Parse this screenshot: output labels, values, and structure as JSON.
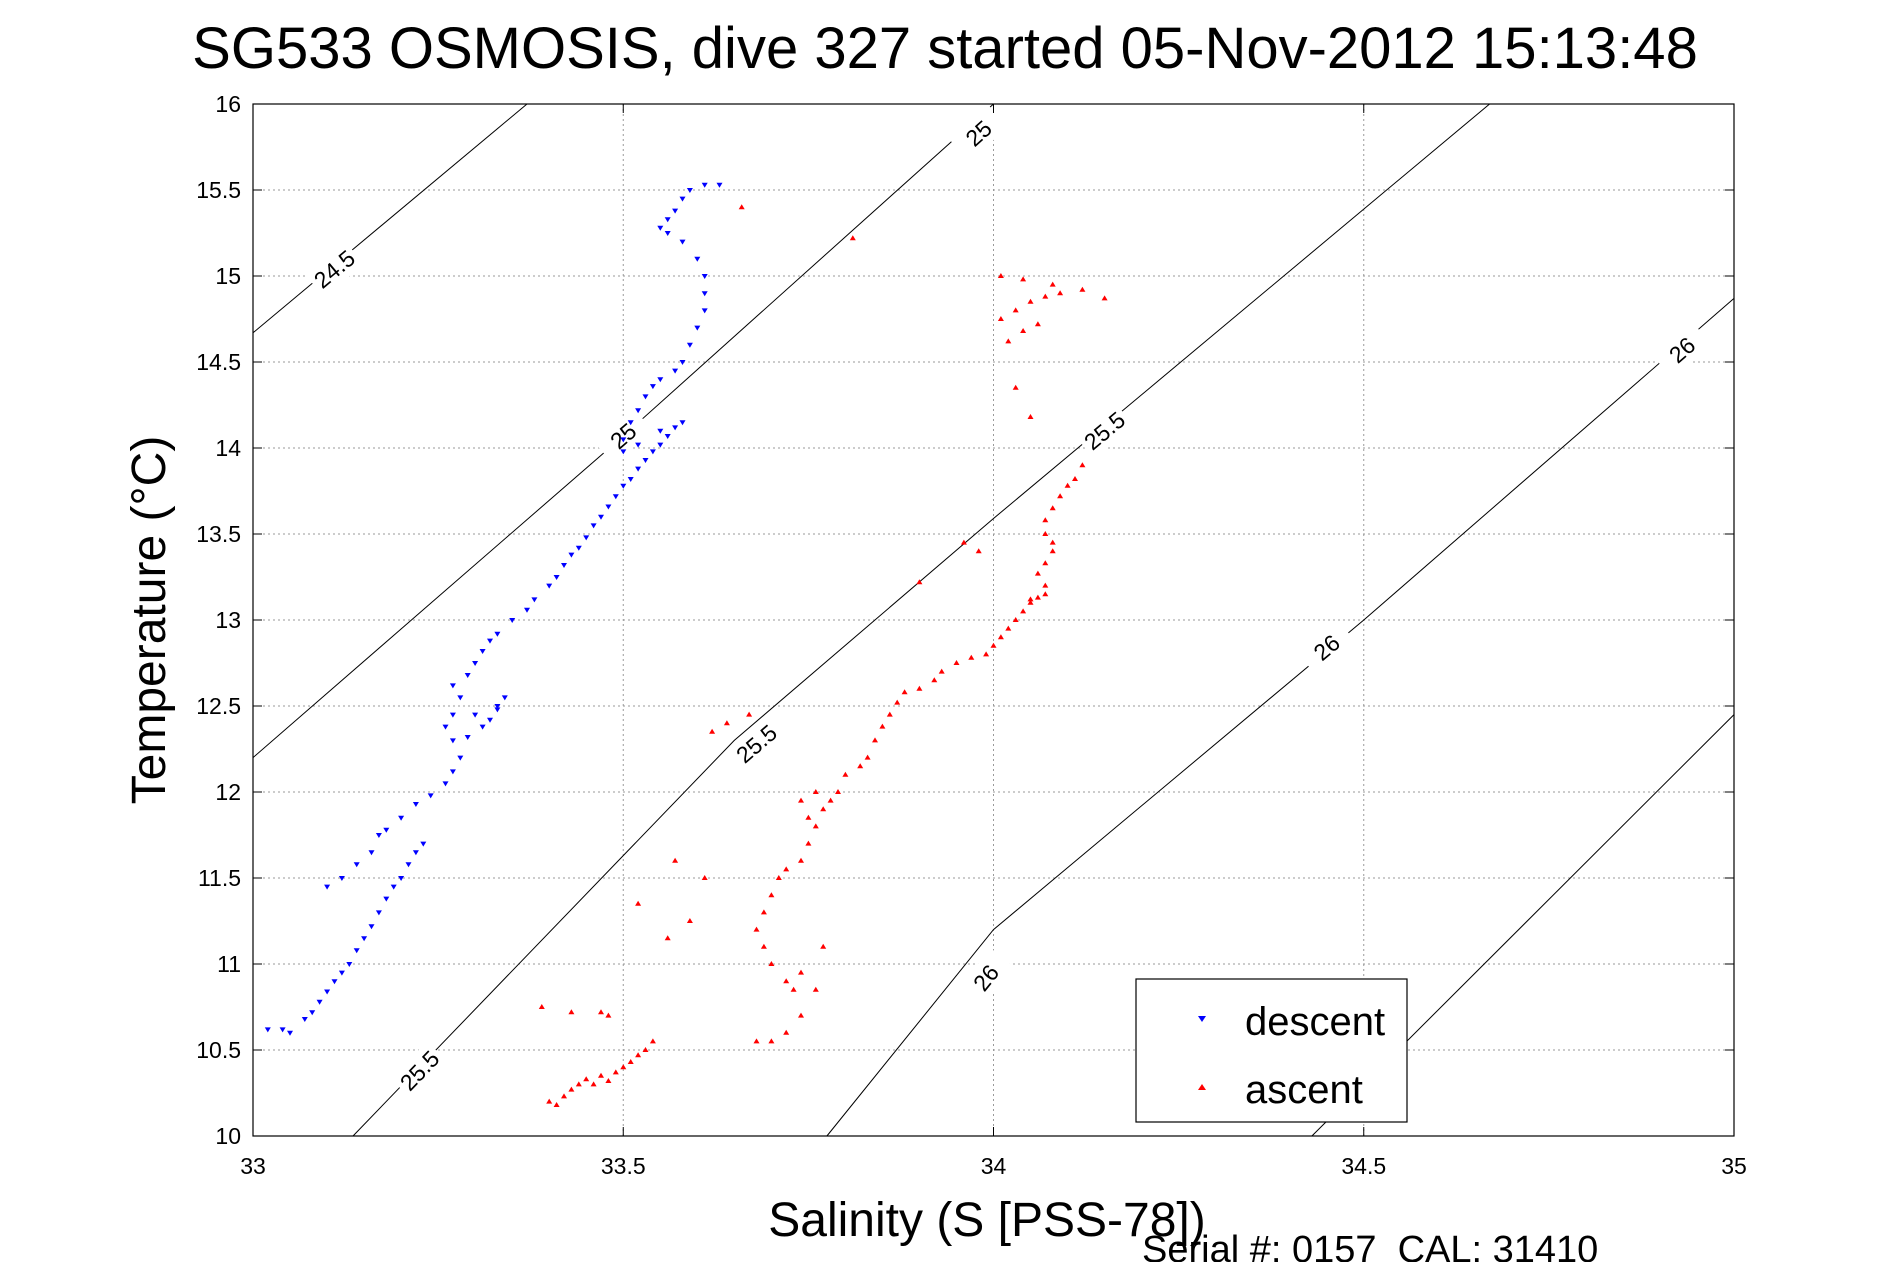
{
  "chart_data": {
    "type": "scatter",
    "title": "SG533 OSMOSIS, dive 327 started 05-Nov-2012 15:13:48",
    "xlabel": "Salinity (S [PSS-78])",
    "ylabel": "Temperature (°C)",
    "xlim": [
      33,
      35
    ],
    "ylim": [
      10,
      16
    ],
    "xticks": [
      "33",
      "33.5",
      "34",
      "34.5",
      "35"
    ],
    "yticks": [
      "10",
      "10.5",
      "11",
      "11.5",
      "12",
      "12.5",
      "13",
      "13.5",
      "14",
      "14.5",
      "15",
      "15.5",
      "16"
    ],
    "grid": true,
    "legend_position": "bottom-right",
    "footer": "Serial #: 0157  CAL: 31410",
    "contours": [
      {
        "label": "24.5",
        "points": [
          [
            33.0,
            14.67
          ],
          [
            33.37,
            16.0
          ]
        ],
        "labels_at": [
          [
            33.11,
            15.04
          ]
        ]
      },
      {
        "label": "25",
        "points": [
          [
            33.0,
            12.2
          ],
          [
            33.5,
            14.07
          ],
          [
            34.0,
            16.0
          ]
        ],
        "labels_at": [
          [
            33.5,
            14.07
          ],
          [
            33.98,
            15.83
          ]
        ]
      },
      {
        "label": "25.5",
        "points": [
          [
            33.135,
            10.0
          ],
          [
            33.65,
            12.3
          ],
          [
            34.0,
            13.59
          ],
          [
            34.67,
            16.0
          ]
        ],
        "labels_at": [
          [
            33.225,
            10.38
          ],
          [
            33.68,
            12.28
          ],
          [
            34.15,
            14.1
          ]
        ]
      },
      {
        "label": "26",
        "points": [
          [
            33.775,
            10.0
          ],
          [
            34.0,
            11.2
          ],
          [
            34.5,
            13.0
          ],
          [
            35.0,
            14.87
          ]
        ],
        "labels_at": [
          [
            33.99,
            10.92
          ],
          [
            34.45,
            12.84
          ],
          [
            34.93,
            14.57
          ]
        ]
      },
      {
        "label": "",
        "points": [
          [
            34.43,
            10.0
          ],
          [
            35.0,
            12.45
          ]
        ],
        "labels_at": []
      }
    ],
    "series": [
      {
        "name": "descent",
        "color": "#0000ff",
        "marker": "triangle-down",
        "points": [
          [
            33.02,
            10.62
          ],
          [
            33.04,
            10.62
          ],
          [
            33.05,
            10.6
          ],
          [
            33.07,
            10.68
          ],
          [
            33.08,
            10.72
          ],
          [
            33.09,
            10.78
          ],
          [
            33.1,
            10.84
          ],
          [
            33.11,
            10.9
          ],
          [
            33.12,
            10.95
          ],
          [
            33.13,
            11.0
          ],
          [
            33.14,
            11.08
          ],
          [
            33.15,
            11.15
          ],
          [
            33.16,
            11.22
          ],
          [
            33.17,
            11.3
          ],
          [
            33.18,
            11.38
          ],
          [
            33.19,
            11.45
          ],
          [
            33.2,
            11.5
          ],
          [
            33.21,
            11.58
          ],
          [
            33.22,
            11.65
          ],
          [
            33.23,
            11.7
          ],
          [
            33.1,
            11.45
          ],
          [
            33.12,
            11.5
          ],
          [
            33.14,
            11.58
          ],
          [
            33.16,
            11.65
          ],
          [
            33.17,
            11.75
          ],
          [
            33.18,
            11.78
          ],
          [
            33.2,
            11.85
          ],
          [
            33.22,
            11.93
          ],
          [
            33.24,
            11.98
          ],
          [
            33.26,
            12.05
          ],
          [
            33.27,
            12.12
          ],
          [
            33.28,
            12.2
          ],
          [
            33.27,
            12.3
          ],
          [
            33.26,
            12.38
          ],
          [
            33.27,
            12.45
          ],
          [
            33.28,
            12.55
          ],
          [
            33.3,
            12.45
          ],
          [
            33.32,
            12.42
          ],
          [
            33.33,
            12.48
          ],
          [
            33.34,
            12.55
          ],
          [
            33.33,
            12.5
          ],
          [
            33.31,
            12.38
          ],
          [
            33.29,
            12.32
          ],
          [
            33.27,
            12.62
          ],
          [
            33.29,
            12.68
          ],
          [
            33.3,
            12.75
          ],
          [
            33.31,
            12.82
          ],
          [
            33.32,
            12.88
          ],
          [
            33.33,
            12.92
          ],
          [
            33.35,
            13.0
          ],
          [
            33.37,
            13.06
          ],
          [
            33.38,
            13.12
          ],
          [
            33.4,
            13.2
          ],
          [
            33.41,
            13.25
          ],
          [
            33.42,
            13.32
          ],
          [
            33.43,
            13.38
          ],
          [
            33.44,
            13.42
          ],
          [
            33.45,
            13.48
          ],
          [
            33.46,
            13.55
          ],
          [
            33.47,
            13.6
          ],
          [
            33.48,
            13.66
          ],
          [
            33.49,
            13.72
          ],
          [
            33.5,
            13.78
          ],
          [
            33.51,
            13.82
          ],
          [
            33.52,
            13.88
          ],
          [
            33.53,
            13.93
          ],
          [
            33.54,
            13.98
          ],
          [
            33.55,
            14.02
          ],
          [
            33.56,
            14.07
          ],
          [
            33.57,
            14.12
          ],
          [
            33.58,
            14.15
          ],
          [
            33.55,
            14.1
          ],
          [
            33.52,
            14.02
          ],
          [
            33.5,
            13.98
          ],
          [
            33.5,
            14.05
          ],
          [
            33.51,
            14.15
          ],
          [
            33.52,
            14.22
          ],
          [
            33.53,
            14.3
          ],
          [
            33.54,
            14.36
          ],
          [
            33.55,
            14.4
          ],
          [
            33.57,
            14.45
          ],
          [
            33.58,
            14.5
          ],
          [
            33.59,
            14.6
          ],
          [
            33.6,
            14.7
          ],
          [
            33.61,
            14.8
          ],
          [
            33.61,
            14.9
          ],
          [
            33.61,
            15.0
          ],
          [
            33.6,
            15.1
          ],
          [
            33.58,
            15.2
          ],
          [
            33.56,
            15.25
          ],
          [
            33.55,
            15.28
          ],
          [
            33.56,
            15.33
          ],
          [
            33.57,
            15.38
          ],
          [
            33.58,
            15.45
          ],
          [
            33.59,
            15.5
          ],
          [
            33.61,
            15.53
          ],
          [
            33.63,
            15.53
          ]
        ]
      },
      {
        "name": "ascent",
        "color": "#ff0000",
        "marker": "triangle-up",
        "points": [
          [
            33.4,
            10.2
          ],
          [
            33.41,
            10.18
          ],
          [
            33.42,
            10.23
          ],
          [
            33.43,
            10.27
          ],
          [
            33.44,
            10.3
          ],
          [
            33.45,
            10.33
          ],
          [
            33.46,
            10.3
          ],
          [
            33.47,
            10.35
          ],
          [
            33.48,
            10.32
          ],
          [
            33.49,
            10.37
          ],
          [
            33.5,
            10.4
          ],
          [
            33.51,
            10.43
          ],
          [
            33.52,
            10.47
          ],
          [
            33.53,
            10.5
          ],
          [
            33.54,
            10.55
          ],
          [
            33.39,
            10.75
          ],
          [
            33.43,
            10.72
          ],
          [
            33.47,
            10.72
          ],
          [
            33.48,
            10.7
          ],
          [
            33.52,
            11.35
          ],
          [
            33.57,
            11.6
          ],
          [
            33.61,
            11.5
          ],
          [
            33.56,
            11.15
          ],
          [
            33.59,
            11.25
          ],
          [
            33.68,
            10.55
          ],
          [
            33.7,
            10.55
          ],
          [
            33.72,
            10.6
          ],
          [
            33.74,
            10.7
          ],
          [
            33.76,
            10.85
          ],
          [
            33.77,
            11.1
          ],
          [
            33.74,
            10.95
          ],
          [
            33.73,
            10.85
          ],
          [
            33.72,
            10.9
          ],
          [
            33.7,
            11.0
          ],
          [
            33.69,
            11.1
          ],
          [
            33.68,
            11.2
          ],
          [
            33.69,
            11.3
          ],
          [
            33.7,
            11.4
          ],
          [
            33.71,
            11.5
          ],
          [
            33.72,
            11.55
          ],
          [
            33.74,
            11.6
          ],
          [
            33.75,
            11.7
          ],
          [
            33.76,
            11.8
          ],
          [
            33.77,
            11.9
          ],
          [
            33.78,
            11.95
          ],
          [
            33.75,
            11.85
          ],
          [
            33.74,
            11.95
          ],
          [
            33.76,
            12.0
          ],
          [
            33.79,
            12.0
          ],
          [
            33.8,
            12.1
          ],
          [
            33.82,
            12.15
          ],
          [
            33.83,
            12.2
          ],
          [
            33.84,
            12.3
          ],
          [
            33.85,
            12.38
          ],
          [
            33.86,
            12.45
          ],
          [
            33.87,
            12.52
          ],
          [
            33.88,
            12.58
          ],
          [
            33.9,
            12.6
          ],
          [
            33.92,
            12.65
          ],
          [
            33.93,
            12.7
          ],
          [
            33.95,
            12.75
          ],
          [
            33.97,
            12.78
          ],
          [
            33.99,
            12.8
          ],
          [
            34.0,
            12.85
          ],
          [
            34.01,
            12.9
          ],
          [
            34.02,
            12.95
          ],
          [
            34.03,
            13.0
          ],
          [
            34.04,
            13.05
          ],
          [
            34.05,
            13.1
          ],
          [
            34.06,
            13.13
          ],
          [
            34.07,
            13.15
          ],
          [
            34.05,
            13.12
          ],
          [
            34.07,
            13.2
          ],
          [
            34.06,
            13.27
          ],
          [
            34.07,
            13.33
          ],
          [
            34.08,
            13.4
          ],
          [
            34.08,
            13.45
          ],
          [
            34.07,
            13.5
          ],
          [
            34.07,
            13.58
          ],
          [
            34.08,
            13.65
          ],
          [
            34.09,
            13.72
          ],
          [
            34.1,
            13.78
          ],
          [
            34.11,
            13.82
          ],
          [
            34.12,
            13.9
          ],
          [
            33.9,
            13.22
          ],
          [
            33.96,
            13.45
          ],
          [
            33.98,
            13.4
          ],
          [
            34.03,
            14.35
          ],
          [
            34.05,
            14.18
          ],
          [
            34.04,
            14.68
          ],
          [
            34.06,
            14.72
          ],
          [
            34.02,
            14.62
          ],
          [
            34.01,
            14.75
          ],
          [
            34.03,
            14.8
          ],
          [
            34.05,
            14.85
          ],
          [
            34.07,
            14.88
          ],
          [
            34.09,
            14.9
          ],
          [
            34.12,
            14.92
          ],
          [
            34.15,
            14.87
          ],
          [
            34.08,
            14.95
          ],
          [
            34.04,
            14.98
          ],
          [
            34.01,
            15.0
          ],
          [
            33.66,
            15.4
          ],
          [
            33.81,
            15.22
          ],
          [
            33.64,
            12.4
          ],
          [
            33.67,
            12.45
          ],
          [
            33.62,
            12.35
          ]
        ]
      }
    ]
  }
}
